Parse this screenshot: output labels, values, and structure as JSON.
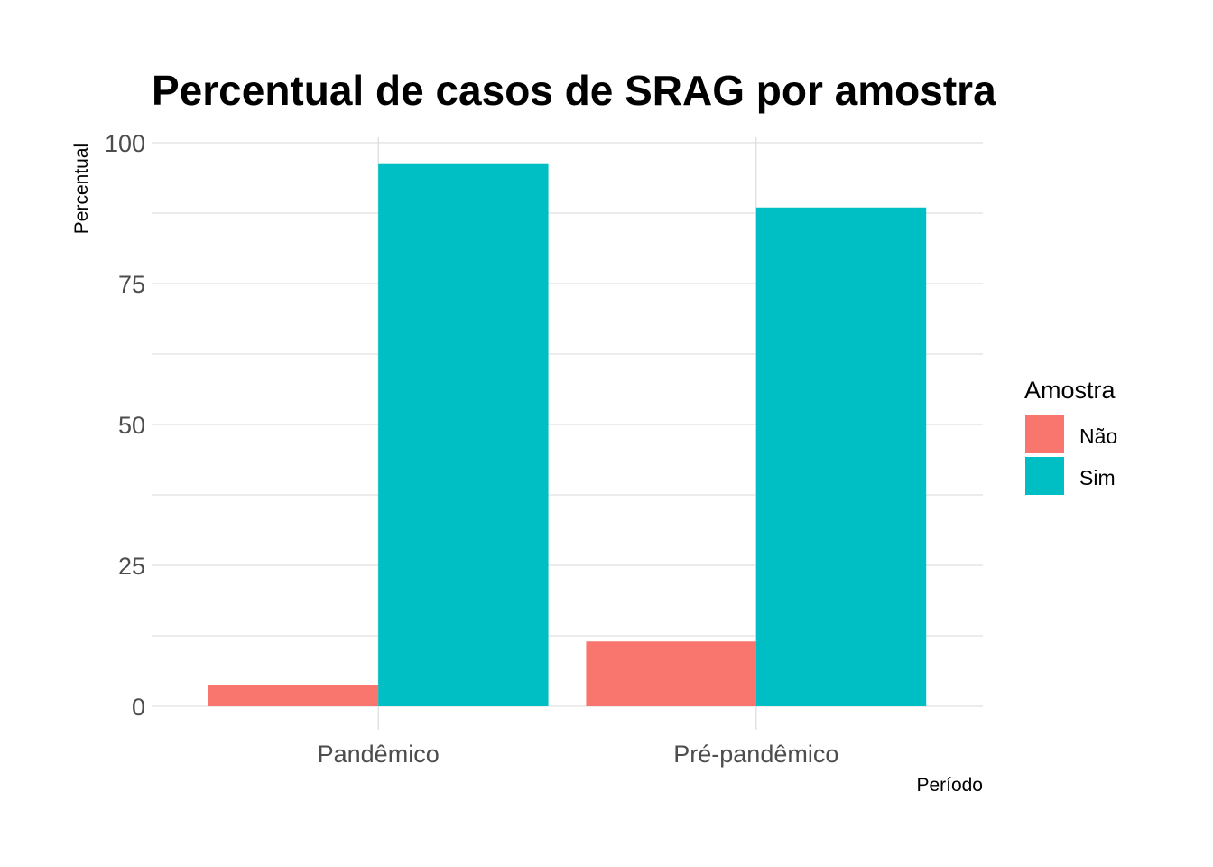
{
  "chart_data": {
    "type": "bar",
    "title": "Percentual de casos de SRAG por amostra",
    "xlabel": "Período",
    "ylabel": "Percentual",
    "categories": [
      "Pandêmico",
      "Pré-pandêmico"
    ],
    "series": [
      {
        "name": "Não",
        "color": "#F8766D",
        "values": [
          3.8,
          11.5
        ]
      },
      {
        "name": "Sim",
        "color": "#00BFC4",
        "values": [
          96.2,
          88.5
        ]
      }
    ],
    "ylim": [
      0,
      100
    ],
    "yticks": [
      "0",
      "25",
      "50",
      "75",
      "100"
    ],
    "grid": true,
    "legend": {
      "title": "Amostra",
      "position": "right"
    }
  }
}
